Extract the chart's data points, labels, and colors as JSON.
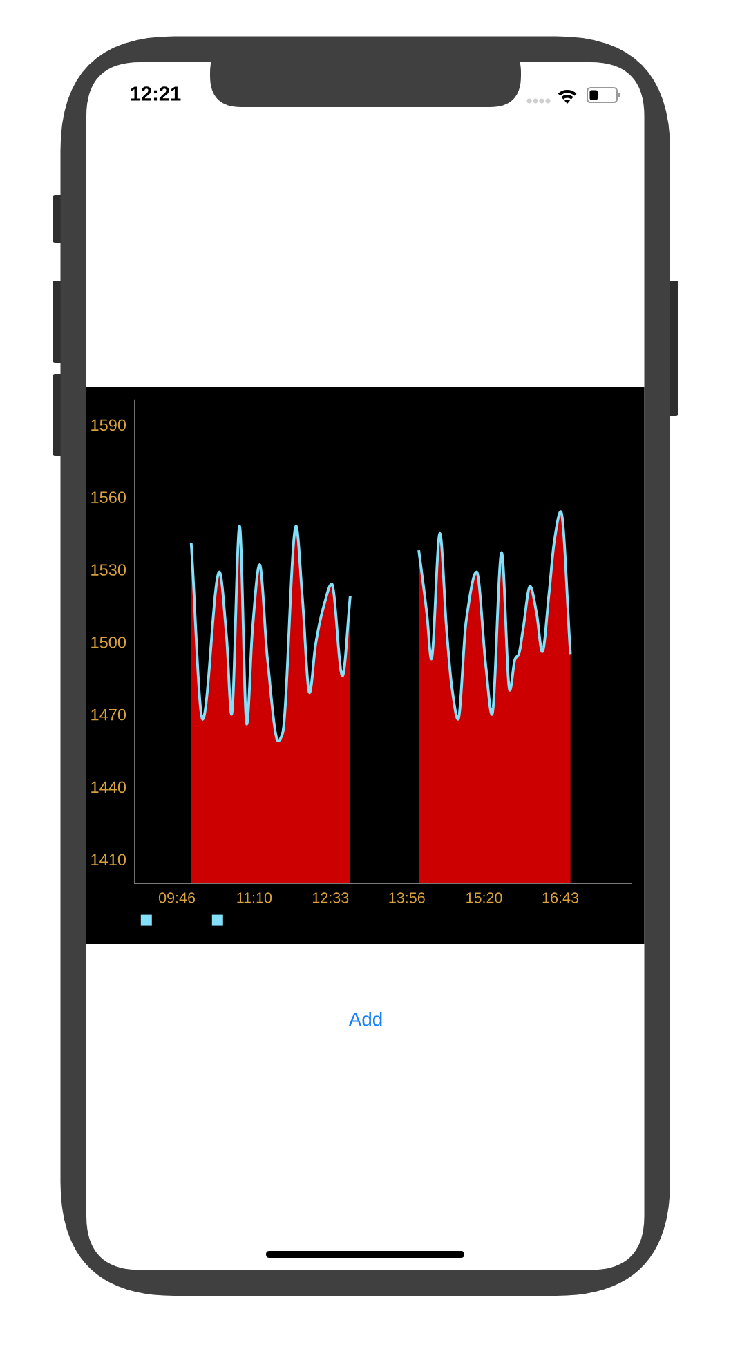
{
  "chart_data": {
    "type": "area",
    "series": [
      {
        "color": "#cc0000",
        "x": [
          10.026,
          10.234,
          10.536,
          10.667,
          10.757,
          10.903,
          11.033,
          11.136,
          11.266,
          11.408,
          11.603,
          11.68,
          11.926,
          12.042,
          12.171,
          12.281,
          12.43,
          12.573,
          12.767,
          12.908
        ],
        "values": [
          1541,
          1468,
          1529,
          1502,
          1470,
          1548,
          1466,
          1505,
          1532,
          1493,
          1459,
          1462,
          1548,
          1518,
          1479,
          1499,
          1515,
          1524,
          1486,
          1519
        ]
      },
      {
        "type": "line",
        "color": "#84e0f9",
        "x": [
          10.026,
          10.234,
          10.536,
          10.667,
          10.757,
          10.903,
          11.033,
          11.136,
          11.266,
          11.408,
          11.603,
          11.68,
          11.926,
          12.042,
          12.171,
          12.281,
          12.43,
          12.573,
          12.767,
          12.908
        ],
        "values": [
          1541,
          1468,
          1529,
          1502,
          1470,
          1548,
          1466,
          1505,
          1532,
          1493,
          1459,
          1462,
          1548,
          1518,
          1479,
          1499,
          1515,
          1524,
          1486,
          1519
        ]
      },
      {
        "color": "#cc0000",
        "x": [
          14.151,
          14.3,
          14.378,
          14.533,
          14.655,
          14.752,
          14.862,
          15.011,
          15.199,
          15.366,
          15.477,
          15.652,
          15.8,
          15.897,
          15.962,
          16.039,
          16.168,
          16.285,
          16.389,
          16.511,
          16.609,
          16.725,
          16.899
        ],
        "values": [
          1538,
          1511,
          1493,
          1545,
          1505,
          1481,
          1468,
          1509,
          1529,
          1490,
          1470,
          1537,
          1480,
          1493,
          1495,
          1505,
          1523,
          1512,
          1496,
          1520,
          1542,
          1554,
          1495
        ]
      },
      {
        "type": "line",
        "color": "#84e0f9",
        "x": [
          14.151,
          14.3,
          14.378,
          14.533,
          14.655,
          14.752,
          14.862,
          15.011,
          15.199,
          15.366,
          15.477,
          15.652,
          15.8,
          15.897,
          15.962,
          16.039,
          16.168,
          16.285,
          16.389,
          16.511,
          16.609,
          16.725,
          16.899
        ],
        "values": [
          1538,
          1511,
          1493,
          1545,
          1505,
          1481,
          1468,
          1509,
          1529,
          1490,
          1470,
          1537,
          1480,
          1493,
          1495,
          1505,
          1523,
          1512,
          1496,
          1520,
          1542,
          1554,
          1495
        ]
      }
    ],
    "xlim": [
      9,
      18
    ],
    "xticks": [
      {
        "value": 9.767,
        "label": "09:46"
      },
      {
        "value": 11.167,
        "label": "11:10"
      },
      {
        "value": 12.55,
        "label": "12:33"
      },
      {
        "value": 13.933,
        "label": "13:56"
      },
      {
        "value": 15.333,
        "label": "15:20"
      },
      {
        "value": 16.717,
        "label": "16:43"
      }
    ],
    "ylim": [
      1400,
      1600
    ],
    "yticks": [
      1410,
      1440,
      1470,
      1500,
      1530,
      1560,
      1590
    ],
    "annotations": [
      "12:21",
      "Add"
    ]
  }
}
